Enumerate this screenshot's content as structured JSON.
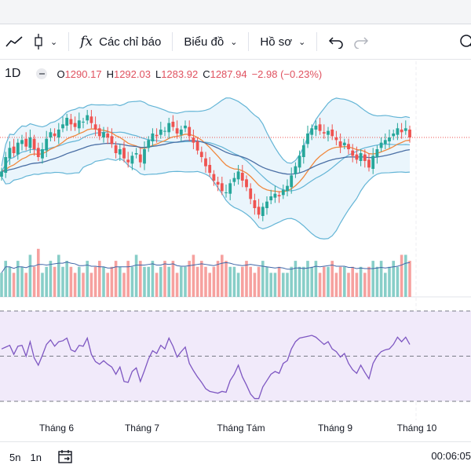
{
  "toolbar": {
    "indicators_label": "Các chỉ báo",
    "layout_label": "Biểu đồ",
    "profile_label": "Hồ sơ"
  },
  "legend": {
    "interval": "1D",
    "o_label": "O",
    "o_value": "1290.17",
    "h_label": "H",
    "h_value": "1292.03",
    "l_label": "L",
    "l_value": "1283.92",
    "c_label": "C",
    "c_value": "1287.94",
    "change": "−2.98 (−0.23%)"
  },
  "colors": {
    "up": "#26a69a",
    "down": "#ef5350",
    "bb_line": "#64b5d6",
    "bb_fill": "#e3f2fb",
    "ma_orange": "#f0883e",
    "ma_blue": "#4a6fa5",
    "rsi_line": "#7e57c2",
    "rsi_band": "#f1eafa"
  },
  "chart_data": {
    "type": "candlestick",
    "closes": [
      1262,
      1273,
      1280,
      1276,
      1284,
      1286,
      1281,
      1288,
      1279,
      1273,
      1279,
      1287,
      1292,
      1289,
      1294,
      1298,
      1303,
      1298,
      1296,
      1301,
      1300,
      1305,
      1299,
      1294,
      1289,
      1292,
      1288,
      1283,
      1276,
      1279,
      1272,
      1269,
      1274,
      1276,
      1269,
      1279,
      1286,
      1291,
      1289,
      1294,
      1293,
      1299,
      1296,
      1291,
      1294,
      1297,
      1289,
      1284,
      1278,
      1273,
      1266,
      1261,
      1255,
      1252,
      1247,
      1246,
      1253,
      1257,
      1262,
      1255,
      1250,
      1241,
      1234,
      1229,
      1235,
      1239,
      1243,
      1245,
      1243,
      1248,
      1251,
      1259,
      1266,
      1274,
      1282,
      1291,
      1295,
      1297,
      1293,
      1291,
      1293,
      1289,
      1286,
      1281,
      1284,
      1279,
      1274,
      1271,
      1276,
      1270,
      1265,
      1274,
      1279,
      1284,
      1286,
      1288,
      1291,
      1295,
      1292,
      1295,
      1288
    ],
    "volume": [
      4,
      6,
      5,
      4,
      6,
      5,
      4,
      7,
      5,
      8,
      4,
      5,
      6,
      5,
      7,
      5,
      6,
      5,
      4,
      5,
      4,
      6,
      4,
      5,
      6,
      5,
      4,
      5,
      6,
      5,
      4,
      6,
      5,
      7,
      6,
      5,
      5,
      6,
      4,
      5,
      6,
      5,
      6,
      4,
      5,
      5,
      6,
      7,
      5,
      6,
      5,
      4,
      5,
      6,
      7,
      6,
      5,
      5,
      4,
      5,
      6,
      5,
      4,
      5,
      6,
      5,
      4,
      4,
      5,
      4,
      4,
      5,
      6,
      5,
      5,
      6,
      5,
      6,
      4,
      5,
      5,
      6,
      4,
      5,
      5,
      4,
      5,
      4,
      5,
      4,
      5,
      6,
      5,
      6,
      4,
      5,
      6,
      5,
      7,
      7,
      6
    ],
    "rsi": [
      58,
      60,
      62,
      52,
      61,
      62,
      50,
      66,
      48,
      40,
      51,
      63,
      68,
      61,
      66,
      67,
      70,
      57,
      55,
      62,
      61,
      70,
      52,
      44,
      41,
      45,
      41,
      38,
      30,
      38,
      22,
      21,
      33,
      37,
      22,
      34,
      47,
      56,
      53,
      62,
      58,
      70,
      61,
      49,
      55,
      60,
      42,
      34,
      27,
      21,
      14,
      11,
      10,
      9,
      11,
      10,
      23,
      30,
      40,
      27,
      18,
      8,
      3,
      3,
      16,
      23,
      30,
      33,
      31,
      42,
      45,
      58,
      66,
      70,
      71,
      72,
      73,
      71,
      67,
      63,
      66,
      58,
      55,
      49,
      53,
      42,
      35,
      31,
      40,
      32,
      25,
      42,
      50,
      55,
      57,
      58,
      63,
      71,
      66,
      71,
      63
    ],
    "x_ticks": [
      "Tháng 6",
      "Tháng 7",
      "Tháng Tám",
      "Tháng 9",
      "Tháng 10"
    ]
  },
  "bottom": {
    "range_5y": "5n",
    "range_1y": "1n",
    "clock": "00:06:05"
  }
}
